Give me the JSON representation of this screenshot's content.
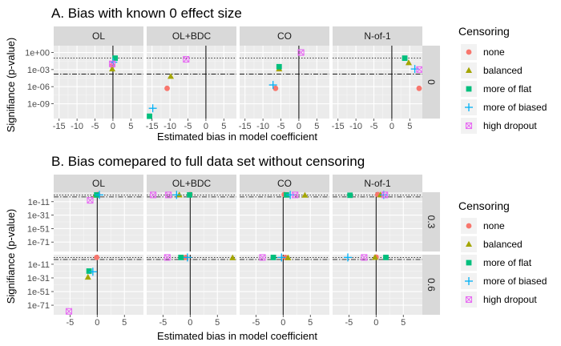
{
  "colors": {
    "none": "#F8766D",
    "balanced": "#A3A500",
    "more_of_flat": "#00BF7D",
    "more_of_biased": "#00B0F6",
    "high_dropout": "#E76BF3"
  },
  "chart_data": [
    {
      "type": "scatter",
      "title": "A. Bias with known 0 effect size",
      "xlabel": "Estimated bias in model coefficient",
      "ylabel": "Signifiance (p-value)",
      "facet_cols": [
        "OL",
        "OL+BDC",
        "CO",
        "N-of-1"
      ],
      "facet_rows": [
        "0"
      ],
      "x_ticks": [
        "-15",
        "-10",
        "-5",
        "0",
        "5"
      ],
      "x_tick_values": [
        -15,
        -10,
        -5,
        0,
        5
      ],
      "xlim": [
        -16.5,
        8.5
      ],
      "y_ticks": [
        "1e-09",
        "1e-06",
        "1e-03",
        "1e+00"
      ],
      "y_tick_values": [
        -9,
        -6,
        -3,
        0
      ],
      "ylim_log10": [
        -11.6,
        1.2
      ],
      "hlines_log10": [
        -1,
        -3.8
      ],
      "points": [
        {
          "facet": "OL",
          "row": "0",
          "series": "none",
          "x": -0.2,
          "log10p": -2.3
        },
        {
          "facet": "OL",
          "row": "0",
          "series": "balanced",
          "x": -0.2,
          "log10p": -2.9
        },
        {
          "facet": "OL",
          "row": "0",
          "series": "more_of_flat",
          "x": 0.6,
          "log10p": -1.0
        },
        {
          "facet": "OL",
          "row": "0",
          "series": "more_of_biased",
          "x": 0.1,
          "log10p": -1.7
        },
        {
          "facet": "OL",
          "row": "0",
          "series": "high_dropout",
          "x": -0.2,
          "log10p": -2.0
        },
        {
          "facet": "OL+BDC",
          "row": "0",
          "series": "none",
          "x": -10.8,
          "log10p": -6.3
        },
        {
          "facet": "OL+BDC",
          "row": "0",
          "series": "balanced",
          "x": -9.8,
          "log10p": -4.2
        },
        {
          "facet": "OL+BDC",
          "row": "0",
          "series": "more_of_flat",
          "x": -15.7,
          "log10p": -11.2
        },
        {
          "facet": "OL+BDC",
          "row": "0",
          "series": "more_of_biased",
          "x": -14.8,
          "log10p": -9.8
        },
        {
          "facet": "OL+BDC",
          "row": "0",
          "series": "high_dropout",
          "x": -5.5,
          "log10p": -1.2
        },
        {
          "facet": "CO",
          "row": "0",
          "series": "none",
          "x": -6.5,
          "log10p": -6.3
        },
        {
          "facet": "CO",
          "row": "0",
          "series": "balanced",
          "x": -5.5,
          "log10p": -2.9
        },
        {
          "facet": "CO",
          "row": "0",
          "series": "more_of_flat",
          "x": -5.5,
          "log10p": -2.5
        },
        {
          "facet": "CO",
          "row": "0",
          "series": "more_of_biased",
          "x": -7.2,
          "log10p": -5.7
        },
        {
          "facet": "CO",
          "row": "0",
          "series": "high_dropout",
          "x": 0.6,
          "log10p": 0.0
        },
        {
          "facet": "N-of-1",
          "row": "0",
          "series": "none",
          "x": 7.6,
          "log10p": -6.3
        },
        {
          "facet": "N-of-1",
          "row": "0",
          "series": "balanced",
          "x": 4.7,
          "log10p": -1.8
        },
        {
          "facet": "N-of-1",
          "row": "0",
          "series": "more_of_flat",
          "x": 3.6,
          "log10p": -1.0
        },
        {
          "facet": "N-of-1",
          "row": "0",
          "series": "more_of_biased",
          "x": 6.4,
          "log10p": -2.9
        },
        {
          "facet": "N-of-1",
          "row": "0",
          "series": "high_dropout",
          "x": 7.7,
          "log10p": -3.0
        }
      ]
    },
    {
      "type": "scatter",
      "title": "B. Bias comepared to full data set without censoring",
      "xlabel": "Estimated bias in model coefficient",
      "ylabel": "Signifiance (p-value)",
      "facet_cols": [
        "OL",
        "OL+BDC",
        "CO",
        "N-of-1"
      ],
      "facet_rows": [
        "0.3",
        "0.6"
      ],
      "x_ticks": [
        "-5",
        "0",
        "5"
      ],
      "x_tick_values": [
        -5,
        0,
        5
      ],
      "xlim": [
        -8,
        8.5
      ],
      "y_ticks": [
        "1e-71",
        "1e-51",
        "1e-31",
        "1e-11"
      ],
      "y_tick_values": [
        -71,
        -51,
        -31,
        -11
      ],
      "ylim_log10": [
        -85,
        3
      ],
      "hlines_log10": [
        -1,
        -4
      ],
      "points": [
        {
          "facet": "OL",
          "row": "0.3",
          "series": "none",
          "x": 0.1,
          "log10p": -0.5
        },
        {
          "facet": "OL",
          "row": "0.3",
          "series": "balanced",
          "x": -0.3,
          "log10p": -1.5
        },
        {
          "facet": "OL",
          "row": "0.3",
          "series": "more_of_flat",
          "x": -0.1,
          "log10p": -1.0
        },
        {
          "facet": "OL",
          "row": "0.3",
          "series": "more_of_biased",
          "x": 0.4,
          "log10p": -1.0
        },
        {
          "facet": "OL",
          "row": "0.3",
          "series": "high_dropout",
          "x": -1.3,
          "log10p": -9.0
        },
        {
          "facet": "OL+BDC",
          "row": "0.3",
          "series": "none",
          "x": 0.0,
          "log10p": -0.5
        },
        {
          "facet": "OL+BDC",
          "row": "0.3",
          "series": "balanced",
          "x": -2.0,
          "log10p": -1.0
        },
        {
          "facet": "OL+BDC",
          "row": "0.3",
          "series": "more_of_flat",
          "x": -0.1,
          "log10p": -1.0
        },
        {
          "facet": "OL+BDC",
          "row": "0.3",
          "series": "more_of_biased",
          "x": -2.5,
          "log10p": -1.0
        },
        {
          "facet": "OL+BDC",
          "row": "0.3",
          "series": "high_dropout",
          "x": -4.0,
          "log10p": -1.0
        },
        {
          "facet": "OL+BDC",
          "row": "0.3",
          "series": "high_dropout",
          "x": -6.8,
          "log10p": -1.0
        },
        {
          "facet": "CO",
          "row": "0.3",
          "series": "none",
          "x": 0.2,
          "log10p": -0.5
        },
        {
          "facet": "CO",
          "row": "0.3",
          "series": "balanced",
          "x": 4.0,
          "log10p": -1.5
        },
        {
          "facet": "CO",
          "row": "0.3",
          "series": "more_of_flat",
          "x": 0.6,
          "log10p": -1.0
        },
        {
          "facet": "CO",
          "row": "0.3",
          "series": "more_of_biased",
          "x": 1.3,
          "log10p": -1.0
        },
        {
          "facet": "CO",
          "row": "0.3",
          "series": "high_dropout",
          "x": 2.2,
          "log10p": -1.0
        },
        {
          "facet": "N-of-1",
          "row": "0.3",
          "series": "none",
          "x": 0.3,
          "log10p": -0.5
        },
        {
          "facet": "N-of-1",
          "row": "0.3",
          "series": "balanced",
          "x": 0.8,
          "log10p": -1.0
        },
        {
          "facet": "N-of-1",
          "row": "0.3",
          "series": "more_of_flat",
          "x": -4.8,
          "log10p": -1.5
        },
        {
          "facet": "N-of-1",
          "row": "0.3",
          "series": "more_of_biased",
          "x": 1.4,
          "log10p": -1.0
        },
        {
          "facet": "N-of-1",
          "row": "0.3",
          "series": "high_dropout",
          "x": 1.6,
          "log10p": -1.0
        },
        {
          "facet": "OL",
          "row": "0.6",
          "series": "none",
          "x": -0.1,
          "log10p": -1.0
        },
        {
          "facet": "OL",
          "row": "0.6",
          "series": "balanced",
          "x": -1.7,
          "log10p": -30.0
        },
        {
          "facet": "OL",
          "row": "0.6",
          "series": "more_of_flat",
          "x": -1.5,
          "log10p": -21.0
        },
        {
          "facet": "OL",
          "row": "0.6",
          "series": "more_of_biased",
          "x": -0.8,
          "log10p": -22.0
        },
        {
          "facet": "OL",
          "row": "0.6",
          "series": "high_dropout",
          "x": -5.2,
          "log10p": -80.0
        },
        {
          "facet": "OL+BDC",
          "row": "0.6",
          "series": "none",
          "x": -0.8,
          "log10p": -1.0
        },
        {
          "facet": "OL+BDC",
          "row": "0.6",
          "series": "balanced",
          "x": 7.8,
          "log10p": -1.5
        },
        {
          "facet": "OL+BDC",
          "row": "0.6",
          "series": "more_of_flat",
          "x": -1.7,
          "log10p": -1.0
        },
        {
          "facet": "OL+BDC",
          "row": "0.6",
          "series": "more_of_biased",
          "x": -0.5,
          "log10p": -1.0
        },
        {
          "facet": "OL+BDC",
          "row": "0.6",
          "series": "high_dropout",
          "x": -4.2,
          "log10p": -1.0
        },
        {
          "facet": "CO",
          "row": "0.6",
          "series": "none",
          "x": 0.4,
          "log10p": -1.0
        },
        {
          "facet": "CO",
          "row": "0.6",
          "series": "balanced",
          "x": 0.9,
          "log10p": -1.5
        },
        {
          "facet": "CO",
          "row": "0.6",
          "series": "more_of_flat",
          "x": -1.8,
          "log10p": -1.0
        },
        {
          "facet": "CO",
          "row": "0.6",
          "series": "more_of_biased",
          "x": -0.3,
          "log10p": -1.0
        },
        {
          "facet": "CO",
          "row": "0.6",
          "series": "high_dropout",
          "x": -3.8,
          "log10p": -1.0
        },
        {
          "facet": "N-of-1",
          "row": "0.6",
          "series": "none",
          "x": 0.0,
          "log10p": -0.5
        },
        {
          "facet": "N-of-1",
          "row": "0.6",
          "series": "balanced",
          "x": -0.2,
          "log10p": -1.0
        },
        {
          "facet": "N-of-1",
          "row": "0.6",
          "series": "more_of_flat",
          "x": 1.8,
          "log10p": -1.0
        },
        {
          "facet": "N-of-1",
          "row": "0.6",
          "series": "more_of_biased",
          "x": -5.2,
          "log10p": -1.0
        },
        {
          "facet": "N-of-1",
          "row": "0.6",
          "series": "high_dropout",
          "x": -2.2,
          "log10p": -1.0
        }
      ]
    }
  ],
  "legend": {
    "title": "Censoring",
    "items": [
      {
        "key": "none",
        "label": "none",
        "shape": "circle"
      },
      {
        "key": "balanced",
        "label": "balanced",
        "shape": "triangle"
      },
      {
        "key": "more_of_flat",
        "label": "more of flat",
        "shape": "square"
      },
      {
        "key": "more_of_biased",
        "label": "more of biased",
        "shape": "plus"
      },
      {
        "key": "high_dropout",
        "label": "high dropout",
        "shape": "boxx"
      }
    ]
  }
}
